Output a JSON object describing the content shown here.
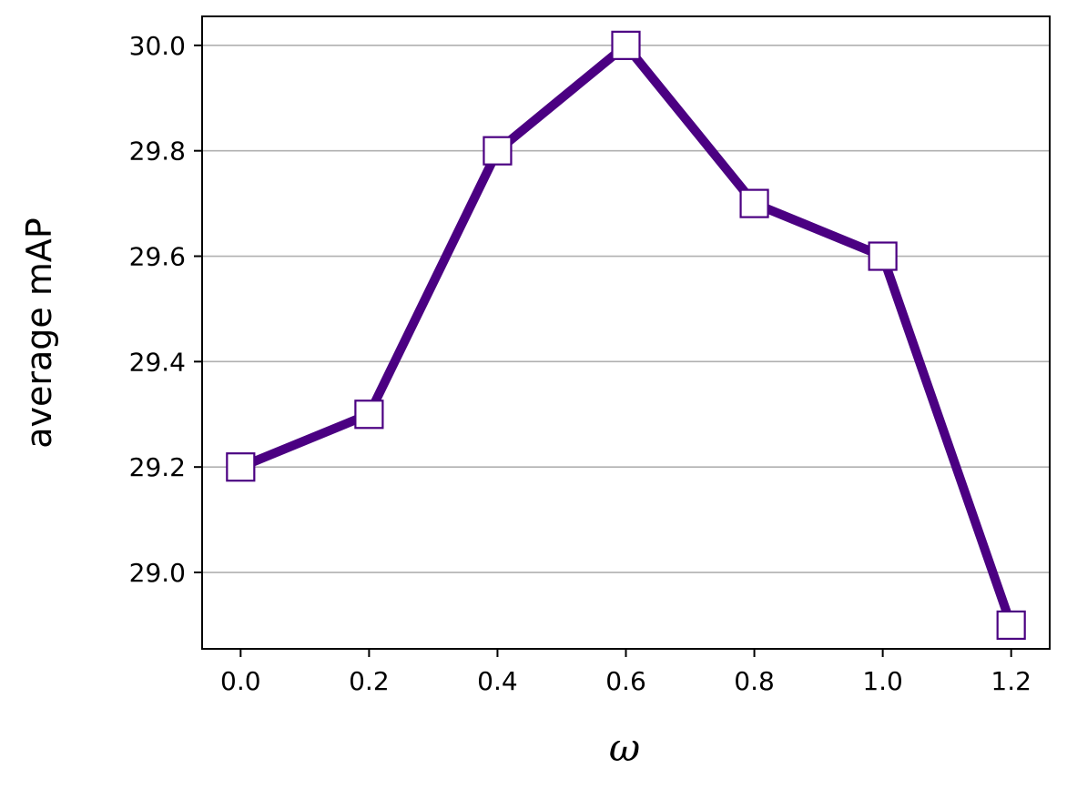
{
  "chart_data": {
    "type": "line",
    "title": "",
    "xlabel": "ω",
    "ylabel": "average mAP",
    "x": [
      0.0,
      0.2,
      0.4,
      0.6,
      0.8,
      1.0,
      1.2
    ],
    "series": [
      {
        "values": [
          29.2,
          29.3,
          29.8,
          30.0,
          29.7,
          29.6,
          28.9
        ]
      }
    ],
    "xlim": [
      -0.06,
      1.26
    ],
    "ylim": [
      28.855,
      30.055
    ],
    "xticks": [
      "0.0",
      "0.2",
      "0.4",
      "0.6",
      "0.8",
      "1.0",
      "1.2"
    ],
    "yticks": [
      "29.0",
      "29.2",
      "29.4",
      "29.6",
      "29.8",
      "30.0"
    ],
    "grid": "y",
    "marker": "square",
    "colors": {
      "line": "#4b0082",
      "marker_edge": "#4b0082",
      "marker_fill": "#ffffff",
      "grid": "#b0b0b0",
      "axes": "#000000"
    }
  }
}
